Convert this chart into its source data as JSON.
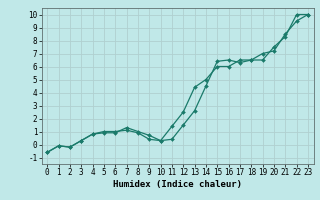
{
  "x": [
    0,
    1,
    2,
    3,
    4,
    5,
    6,
    7,
    8,
    9,
    10,
    11,
    12,
    13,
    14,
    15,
    16,
    17,
    18,
    19,
    20,
    21,
    22,
    23
  ],
  "line1": [
    -0.6,
    -0.1,
    -0.2,
    0.3,
    0.8,
    0.9,
    0.9,
    1.3,
    1.0,
    0.7,
    0.3,
    0.4,
    1.5,
    2.6,
    4.5,
    6.4,
    6.5,
    6.3,
    6.5,
    6.5,
    7.5,
    8.3,
    10.0,
    10.0
  ],
  "line2": [
    -0.6,
    -0.1,
    -0.2,
    0.3,
    0.8,
    1.0,
    1.0,
    1.1,
    0.9,
    0.4,
    0.3,
    1.4,
    2.5,
    4.4,
    5.0,
    6.0,
    6.0,
    6.5,
    6.5,
    7.0,
    7.2,
    8.5,
    9.5,
    10.0
  ],
  "xlim": [
    -0.5,
    23.5
  ],
  "ylim": [
    -1.5,
    10.5
  ],
  "yticks": [
    -1,
    0,
    1,
    2,
    3,
    4,
    5,
    6,
    7,
    8,
    9,
    10
  ],
  "xticks": [
    0,
    1,
    2,
    3,
    4,
    5,
    6,
    7,
    8,
    9,
    10,
    11,
    12,
    13,
    14,
    15,
    16,
    17,
    18,
    19,
    20,
    21,
    22,
    23
  ],
  "xlabel": "Humidex (Indice chaleur)",
  "line_color": "#1a7a6a",
  "bg_color": "#c0e8e8",
  "grid_color": "#b0d0d0",
  "tick_fontsize": 5.5,
  "label_fontsize": 6.5
}
